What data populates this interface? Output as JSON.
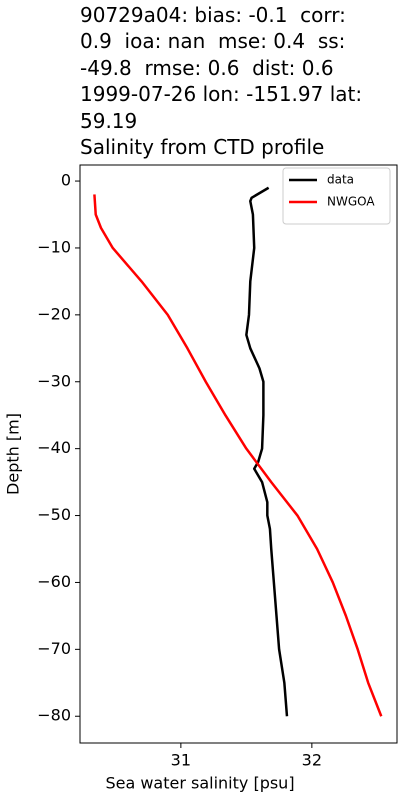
{
  "chart_data": {
    "type": "line",
    "title": "90729a04: bias: -0.1  corr:\n0.9  ioa: nan  mse: 0.4  ss:\n-49.8  rmse: 0.6  dist: 0.6\n1999-07-26 lon: -151.97 lat:\n59.19\nSalinity from CTD profile",
    "xlabel": "Sea water salinity [psu]",
    "ylabel": "Depth [m]",
    "xlim": [
      30.23,
      32.65
    ],
    "ylim": [
      -84.0,
      2.4
    ],
    "xticks": [
      31,
      32
    ],
    "yticks": [
      0,
      {
        "value": -10,
        "label": "−10"
      },
      {
        "value": -20,
        "label": "−20"
      },
      {
        "value": -30,
        "label": "−30"
      },
      {
        "value": -40,
        "label": "−40"
      },
      {
        "value": -50,
        "label": "−50"
      },
      {
        "value": -60,
        "label": "−60"
      },
      {
        "value": -70,
        "label": "−70"
      },
      {
        "value": -80,
        "label": "−80"
      }
    ],
    "legend": "upper right",
    "series": [
      {
        "name": "data",
        "color": "#000000",
        "x": [
          31.67,
          31.54,
          31.53,
          31.55,
          31.56,
          31.53,
          31.52,
          31.5,
          31.53,
          31.6,
          31.63,
          31.63,
          31.62,
          31.59,
          31.56,
          31.62,
          31.66,
          31.66,
          31.68,
          31.69,
          31.71,
          31.73,
          31.75,
          31.79,
          31.81
        ],
        "values": [
          -1,
          -2.5,
          -3,
          -5,
          -10,
          -15,
          -20,
          -23,
          -25,
          -28,
          -30,
          -35,
          -40,
          -42,
          -43,
          -45,
          -48,
          -50,
          -52,
          -55,
          -60,
          -65,
          -70,
          -75,
          -80
        ]
      },
      {
        "name": "NWGOA",
        "color": "#ff0000",
        "x": [
          30.34,
          30.35,
          30.39,
          30.48,
          30.7,
          30.9,
          31.05,
          31.19,
          31.34,
          31.5,
          31.69,
          31.89,
          32.04,
          32.16,
          32.26,
          32.35,
          32.43,
          32.53
        ],
        "values": [
          -2,
          -5,
          -7,
          -10,
          -15,
          -20,
          -25,
          -30,
          -35,
          -40,
          -45,
          -50,
          -55,
          -60,
          -65,
          -70,
          -75,
          -80
        ]
      }
    ]
  }
}
